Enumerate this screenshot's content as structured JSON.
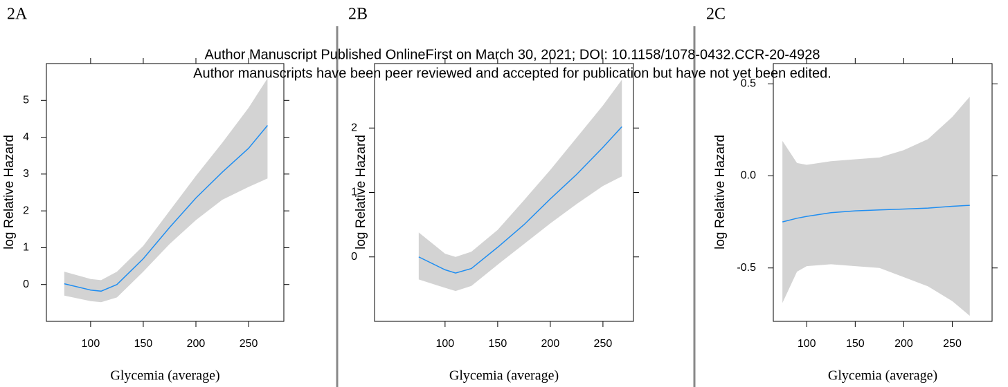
{
  "watermark": [
    "Author Manuscript Published OnlineFirst on March 30, 2021; DOI: 10.1158/1078-0432.CCR-20-4928",
    "Author manuscripts have been peer reviewed and accepted for publication but have not yet been edited."
  ],
  "chart_data": [
    {
      "type": "line",
      "panel_label": "2A",
      "xlabel": "Glycemia (average)",
      "ylabel": "log Relative Hazard",
      "x": [
        75,
        100,
        110,
        125,
        150,
        175,
        200,
        225,
        250,
        268
      ],
      "values": [
        0.02,
        -0.15,
        -0.18,
        0.0,
        0.7,
        1.55,
        2.35,
        3.05,
        3.7,
        4.32
      ],
      "lower": [
        -0.3,
        -0.45,
        -0.48,
        -0.35,
        0.35,
        1.1,
        1.75,
        2.3,
        2.65,
        2.88
      ],
      "upper": [
        0.35,
        0.15,
        0.12,
        0.35,
        1.05,
        2.0,
        2.95,
        3.85,
        4.8,
        5.6
      ],
      "color": "#1f8ef1",
      "band_color": "#d3d3d3",
      "xlim": [
        58,
        283.5
      ],
      "ylim": [
        -1,
        6
      ],
      "xticks": [
        100,
        150,
        200,
        250
      ],
      "yticks": [
        0,
        1,
        2,
        3,
        4,
        5
      ]
    },
    {
      "type": "line",
      "panel_label": "2B",
      "xlabel": "Glycemia (average)",
      "ylabel": "log Relative Hazard",
      "x": [
        75,
        100,
        110,
        125,
        150,
        175,
        200,
        225,
        250,
        268
      ],
      "values": [
        0.0,
        -0.2,
        -0.25,
        -0.18,
        0.15,
        0.5,
        0.9,
        1.28,
        1.7,
        2.02
      ],
      "lower": [
        -0.35,
        -0.48,
        -0.53,
        -0.45,
        -0.12,
        0.2,
        0.52,
        0.82,
        1.1,
        1.25
      ],
      "upper": [
        0.38,
        0.05,
        0.0,
        0.08,
        0.42,
        0.88,
        1.35,
        1.85,
        2.35,
        2.75
      ],
      "color": "#1f8ef1",
      "band_color": "#d3d3d3",
      "xlim": [
        33,
        279
      ],
      "ylim": [
        -1,
        3
      ],
      "xticks": [
        100,
        150,
        200,
        250
      ],
      "yticks": [
        0,
        1,
        2
      ]
    },
    {
      "type": "line",
      "panel_label": "2C",
      "xlabel": "Glycemia (average)",
      "ylabel": "log Relative Hazard",
      "x": [
        75,
        90,
        100,
        125,
        150,
        175,
        200,
        225,
        250,
        268
      ],
      "values": [
        -0.25,
        -0.23,
        -0.22,
        -0.2,
        -0.19,
        -0.185,
        -0.18,
        -0.175,
        -0.165,
        -0.16
      ],
      "lower": [
        -0.69,
        -0.52,
        -0.49,
        -0.48,
        -0.49,
        -0.5,
        -0.55,
        -0.6,
        -0.68,
        -0.76
      ],
      "upper": [
        0.19,
        0.07,
        0.06,
        0.08,
        0.09,
        0.1,
        0.14,
        0.2,
        0.32,
        0.43
      ],
      "color": "#1f8ef1",
      "band_color": "#d3d3d3",
      "xlim": [
        65.6,
        291
      ],
      "ylim": [
        -0.79,
        0.61
      ],
      "xticks": [
        100,
        150,
        200,
        250
      ],
      "yticks": [
        -0.5,
        {
          "value": 0,
          "label": "0.0"
        },
        0.5
      ]
    }
  ]
}
